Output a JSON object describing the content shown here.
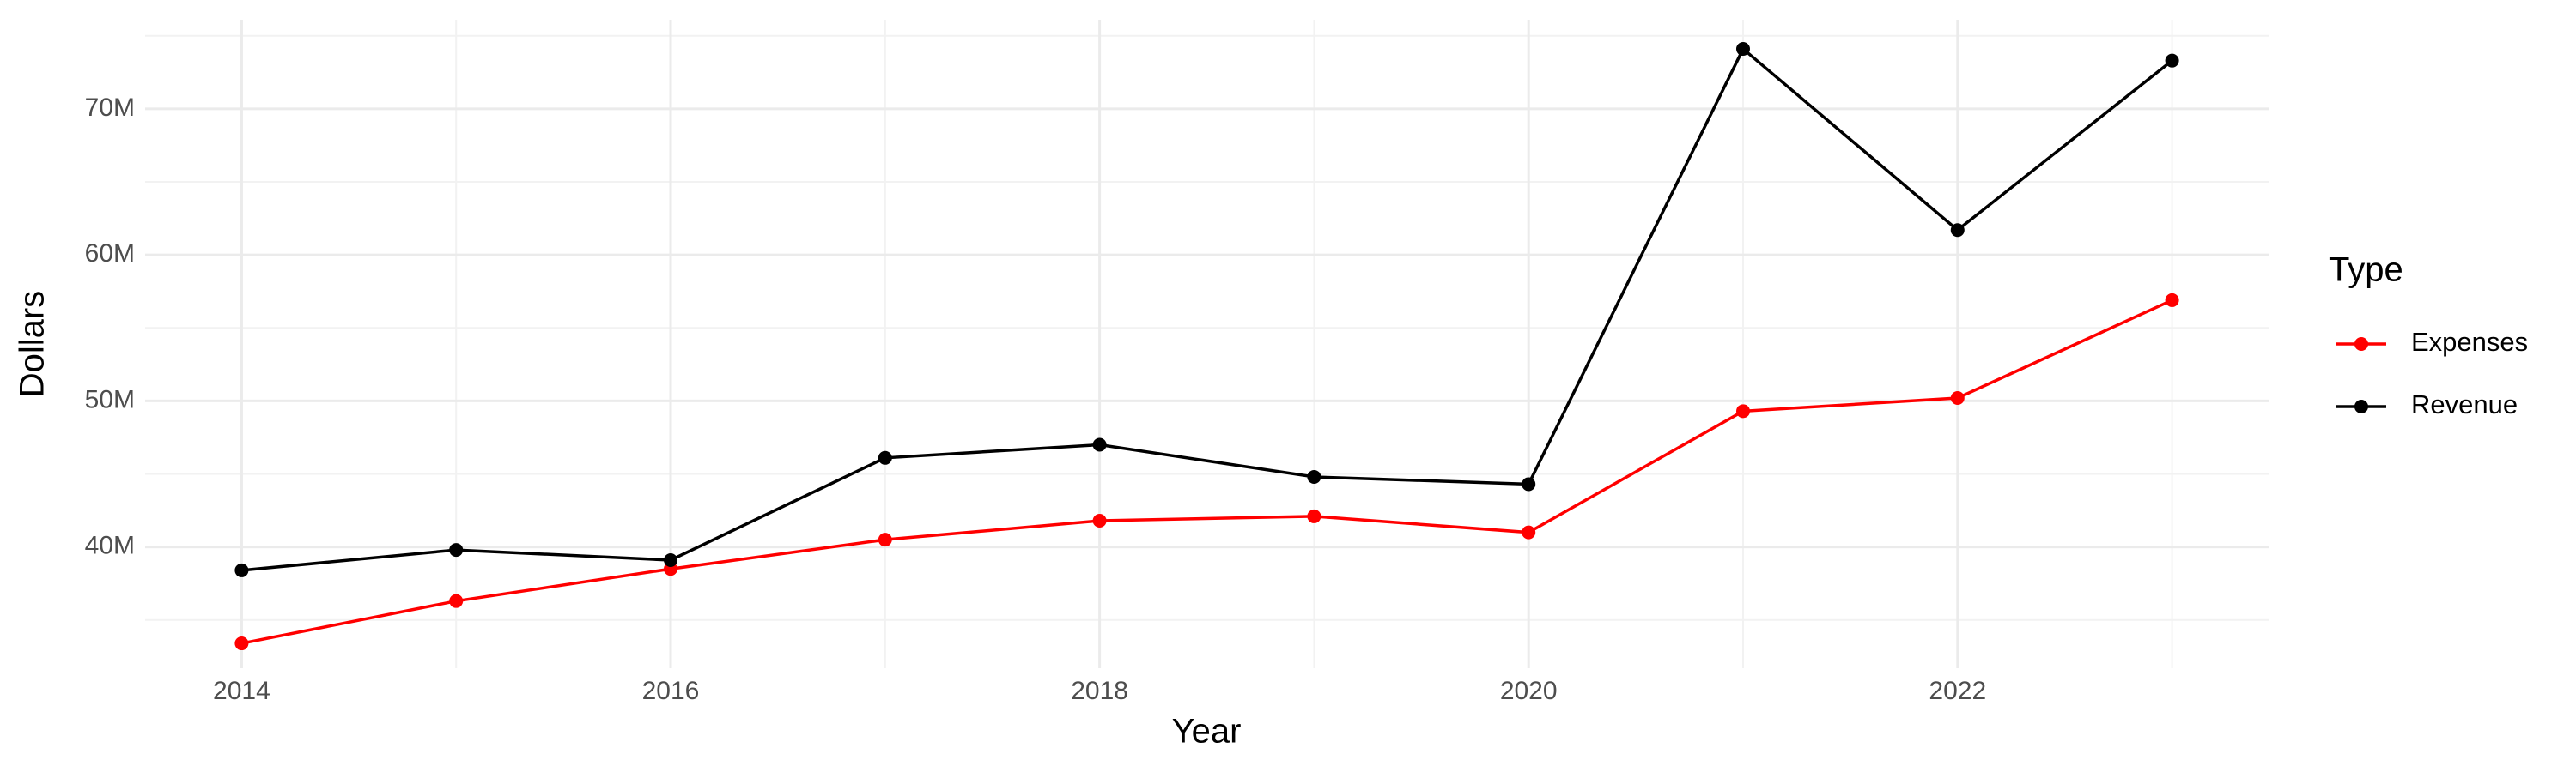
{
  "chart_data": {
    "type": "line",
    "x_label": "Year",
    "y_label": "Dollars",
    "legend_title": "Type",
    "x": [
      2014,
      2015,
      2016,
      2017,
      2018,
      2019,
      2020,
      2021,
      2022,
      2023
    ],
    "series": [
      {
        "name": "Expenses",
        "color": "#ff0000",
        "values": [
          33400000,
          36300000,
          38500000,
          40500000,
          41800000,
          42100000,
          41000000,
          49300000,
          50200000,
          56900000
        ]
      },
      {
        "name": "Revenue",
        "color": "#000000",
        "values": [
          38400000,
          39800000,
          39100000,
          46100000,
          47000000,
          44800000,
          44300000,
          74100000,
          61700000,
          73300000
        ]
      }
    ],
    "xlim": [
      2013.55,
      2023.45
    ],
    "xticks": [
      2014,
      2016,
      2018,
      2020,
      2022
    ],
    "ylim": [
      31700000,
      76100000
    ],
    "yticks": [
      {
        "value": 40000000,
        "label": "40M"
      },
      {
        "value": 50000000,
        "label": "50M"
      },
      {
        "value": 60000000,
        "label": "60M"
      },
      {
        "value": 70000000,
        "label": "70M"
      }
    ],
    "grid": true,
    "legend_position": "right"
  }
}
